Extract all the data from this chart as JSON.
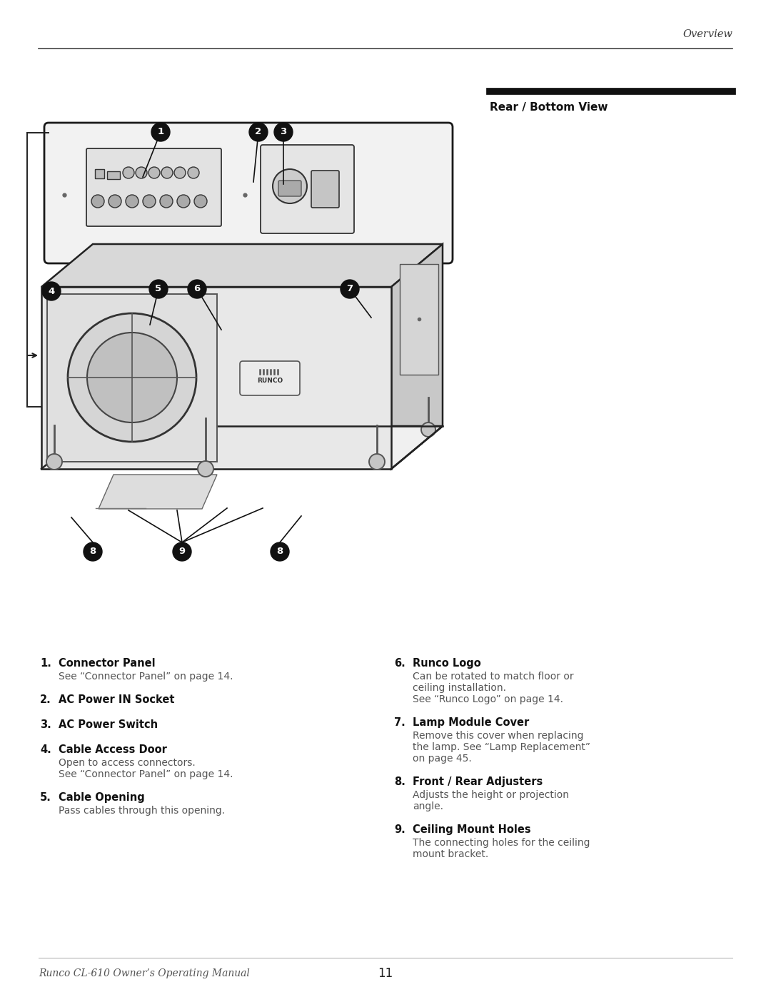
{
  "page_title_right": "Overview",
  "section_title": "Rear / Bottom View",
  "footer_left": "Runco CL-610 Owner’s Operating Manual",
  "footer_page": "11",
  "bg_color": "#ffffff",
  "items_left": [
    {
      "num": "1.",
      "bold": "Connector Panel",
      "normal": "See “Connector Panel” on page 14."
    },
    {
      "num": "2.",
      "bold": "AC Power IN Socket",
      "normal": ""
    },
    {
      "num": "3.",
      "bold": "AC Power Switch",
      "normal": ""
    },
    {
      "num": "4.",
      "bold": "Cable Access Door",
      "normal": "Open to access connectors.\nSee “Connector Panel” on page 14."
    },
    {
      "num": "5.",
      "bold": "Cable Opening",
      "normal": "Pass cables through this opening."
    }
  ],
  "items_right": [
    {
      "num": "6.",
      "bold": "Runco Logo",
      "normal": "Can be rotated to match floor or\nceiling installation.\nSee “Runco Logo” on page 14."
    },
    {
      "num": "7.",
      "bold": "Lamp Module Cover",
      "normal": "Remove this cover when replacing\nthe lamp. See “Lamp Replacement”\non page 45."
    },
    {
      "num": "8.",
      "bold": "Front / Rear Adjusters",
      "normal": "Adjusts the height or projection\nangle."
    },
    {
      "num": "9.",
      "bold": "Ceiling Mount Holes",
      "normal": "The connecting holes for the ceiling\nmount bracket."
    }
  ]
}
